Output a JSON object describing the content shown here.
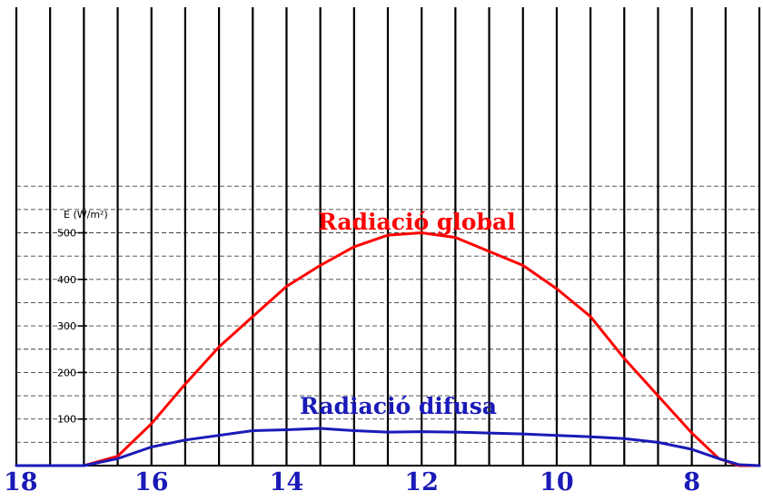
{
  "chart_data": {
    "type": "line",
    "title": "",
    "xlabel": "",
    "ylabel": "E (W/m²)",
    "x_reversed": true,
    "xlim": [
      18.0,
      7.0
    ],
    "ylim": [
      0,
      600
    ],
    "x_ticks": [
      18,
      16,
      14,
      12,
      10,
      8
    ],
    "y_ticks": [
      100,
      200,
      300,
      400,
      500
    ],
    "grid": true,
    "colors": {
      "global": "#ff0000",
      "difusa": "#1a1ab8",
      "x_tick_text": "#1a1ab8"
    },
    "series": [
      {
        "name": "Radiació global",
        "x": [
          18.0,
          17.0,
          16.5,
          16.0,
          15.5,
          15.0,
          14.5,
          14.0,
          13.5,
          13.0,
          12.5,
          12.0,
          11.5,
          11.0,
          10.5,
          10.0,
          9.5,
          9.0,
          8.5,
          8.0,
          7.6,
          7.3,
          7.0
        ],
        "y": [
          0,
          0,
          20,
          90,
          175,
          255,
          320,
          385,
          430,
          470,
          495,
          500,
          490,
          460,
          430,
          380,
          320,
          230,
          150,
          70,
          15,
          0,
          0
        ]
      },
      {
        "name": "Radiació difusa",
        "x": [
          18.0,
          17.0,
          16.5,
          16.0,
          15.5,
          15.0,
          14.5,
          14.0,
          13.5,
          13.0,
          12.5,
          12.0,
          11.5,
          11.0,
          10.5,
          10.0,
          9.5,
          9.0,
          8.5,
          8.0,
          7.6,
          7.3,
          7.0
        ],
        "y": [
          0,
          0,
          15,
          40,
          55,
          65,
          75,
          77,
          80,
          75,
          72,
          73,
          72,
          70,
          68,
          65,
          62,
          58,
          50,
          35,
          15,
          2,
          0
        ]
      }
    ]
  }
}
